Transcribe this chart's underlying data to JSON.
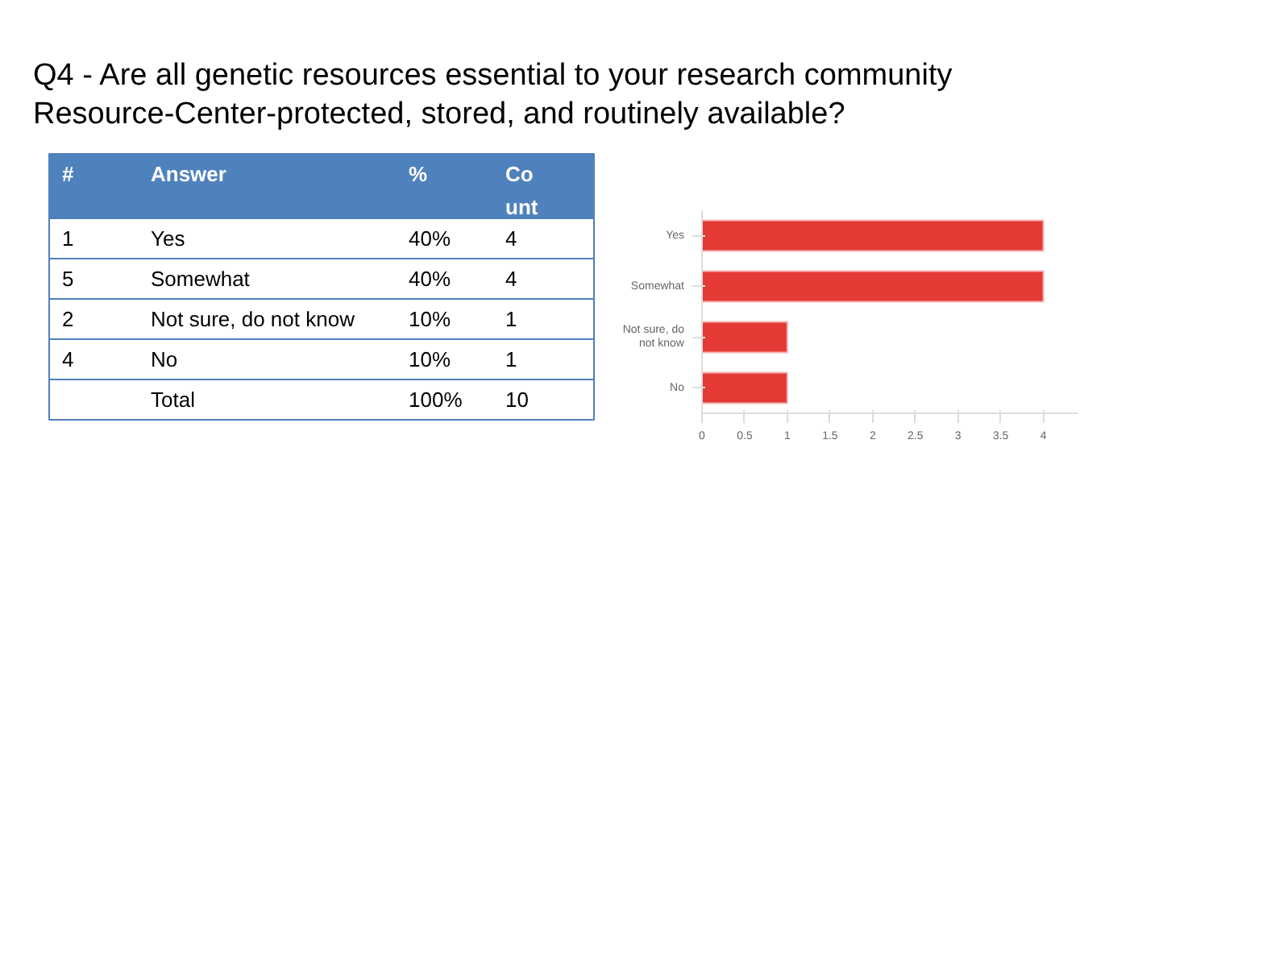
{
  "chart_data": [
    {
      "type": "other",
      "title": "Q4 - Are all genetic resources essential to your research community Resource-Center-protected, stored, and routinely available?",
      "annotations": [
        "#",
        "Answer",
        "%",
        "Co\nunt",
        "1",
        "Yes",
        "40%",
        "4",
        "5",
        "Somewhat",
        "40%",
        "4",
        "2",
        "Not sure, do not know",
        "10%",
        "1",
        "4",
        "No",
        "10%",
        "1",
        "Total",
        "100%",
        "10"
      ]
    },
    {
      "type": "bar",
      "orientation": "horizontal",
      "categories": [
        "Yes",
        "Somewhat",
        "Not sure, do not know",
        "No"
      ],
      "values": [
        4,
        4,
        1,
        1
      ],
      "color": "#e53935",
      "xlim": [
        0,
        4.4
      ],
      "xticks": [
        0,
        0.5,
        1,
        1.5,
        2,
        2.5,
        3,
        3.5,
        4
      ],
      "grid": false
    }
  ]
}
